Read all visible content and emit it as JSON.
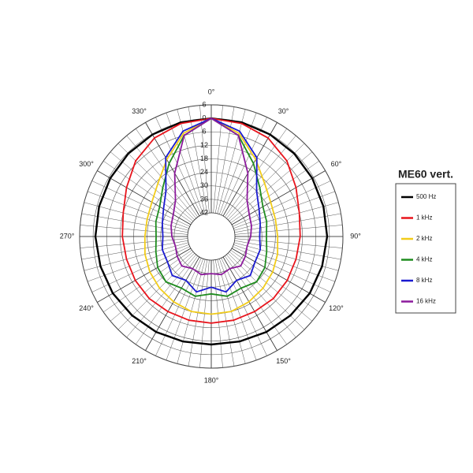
{
  "chart_data": {
    "type": "polar",
    "title": "ME60 vert.",
    "theta": [
      0,
      15,
      30,
      45,
      60,
      75,
      90,
      105,
      120,
      135,
      150,
      165,
      180,
      195,
      210,
      225,
      240,
      255,
      270,
      285,
      300,
      315,
      330,
      345
    ],
    "series": [
      {
        "name": "500 Hz",
        "color": "#000000",
        "values": [
          0,
          0,
          -0.2,
          -0.4,
          -0.7,
          -0.9,
          -1,
          -1.5,
          -2,
          -2.8,
          -3.5,
          -4.2,
          -4.5,
          -4.2,
          -3.5,
          -2.8,
          -2,
          -1.5,
          -1,
          -0.9,
          -0.7,
          -0.4,
          -0.2,
          0
        ]
      },
      {
        "name": "1 kHz",
        "color": "#e8141c",
        "values": [
          0,
          -0.5,
          -2,
          -5,
          -9,
          -12,
          -13,
          -13.5,
          -13.5,
          -13.5,
          -14,
          -14,
          -14,
          -14,
          -14,
          -13.5,
          -13.5,
          -13.5,
          -13,
          -12,
          -9,
          -5,
          -2,
          -0.5
        ]
      },
      {
        "name": "2 kHz",
        "color": "#f2cc1a",
        "values": [
          0,
          -5,
          -13,
          -19,
          -22,
          -23,
          -23,
          -22,
          -21,
          -20,
          -19,
          -18,
          -18,
          -18,
          -19,
          -20,
          -21,
          -22,
          -23,
          -23,
          -22,
          -19,
          -13,
          -5
        ]
      },
      {
        "name": "4 kHz",
        "color": "#1f8c1f",
        "values": [
          0,
          -6,
          -15,
          -22,
          -26,
          -27,
          -28,
          -27,
          -25,
          -24,
          -26,
          -25,
          -27,
          -25,
          -26,
          -24,
          -25,
          -27,
          -28,
          -27,
          -26,
          -22,
          -15,
          -6
        ]
      },
      {
        "name": "8 kHz",
        "color": "#1a1ad0",
        "values": [
          0,
          -4,
          -12,
          -24,
          -28,
          -30,
          -31,
          -30,
          -30,
          -28,
          -30,
          -27,
          -30,
          -27,
          -30,
          -28,
          -30,
          -30,
          -31,
          -30,
          -28,
          -24,
          -12,
          -4
        ]
      },
      {
        "name": "16 kHz",
        "color": "#8c1a9c",
        "values": [
          0,
          -6,
          -20,
          -30,
          -33,
          -34,
          -35,
          -36,
          -35,
          -34,
          -36,
          -35,
          -36,
          -35,
          -36,
          -34,
          -35,
          -36,
          -35,
          -34,
          -33,
          -30,
          -20,
          -6
        ]
      }
    ],
    "rlim": [
      -42,
      6
    ],
    "rticks": [
      6,
      0,
      {
        "value": -6,
        "label": "6"
      },
      {
        "value": -12,
        "label": "12"
      },
      {
        "value": -18,
        "label": "18"
      },
      {
        "value": -24,
        "label": "24"
      },
      {
        "value": -30,
        "label": "30"
      },
      {
        "value": -36,
        "label": "36"
      },
      {
        "value": -42,
        "label": "42"
      }
    ],
    "thetaticks": [
      {
        "value": 0,
        "label": "0°"
      },
      {
        "value": 30,
        "label": "30°"
      },
      {
        "value": 60,
        "label": "60°"
      },
      {
        "value": 90,
        "label": "90°"
      },
      {
        "value": 120,
        "label": "120°"
      },
      {
        "value": 150,
        "label": "150°"
      },
      {
        "value": 180,
        "label": "180°"
      },
      {
        "value": 210,
        "label": "210°"
      },
      {
        "value": 240,
        "label": "240°"
      },
      {
        "value": 270,
        "label": "270°"
      },
      {
        "value": 300,
        "label": "300°"
      },
      {
        "value": 330,
        "label": "330°"
      }
    ],
    "theta_grid_step": 5,
    "grid": true
  }
}
